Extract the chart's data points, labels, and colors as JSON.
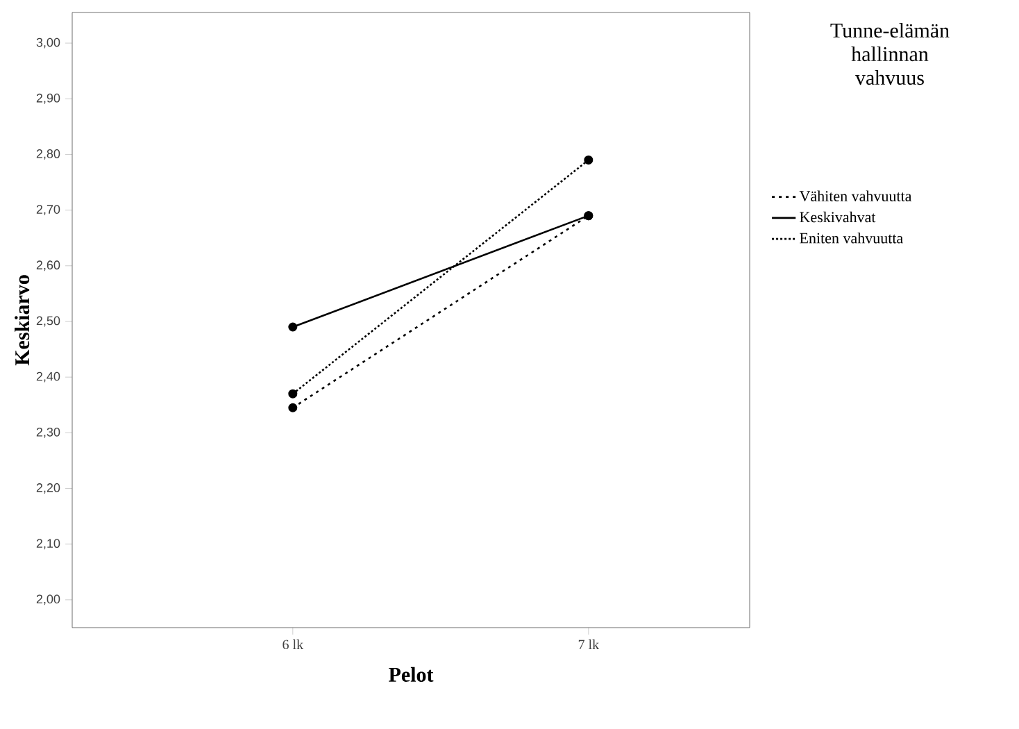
{
  "chart_data": {
    "type": "line",
    "xlabel": "Pelot",
    "ylabel": "Keskiarvo",
    "legend_title": "Tunne-elämän hallinnan vahvuus",
    "categories": [
      "6 lk",
      "7 lk"
    ],
    "series": [
      {
        "name": "Vähiten vahvuutta",
        "color": "#000000",
        "line_style": "dashed",
        "values": [
          2.345,
          2.69
        ]
      },
      {
        "name": "Keskivahvat",
        "color": "#000000",
        "line_style": "solid",
        "values": [
          2.49,
          2.69
        ]
      },
      {
        "name": "Eniten vahvuutta",
        "color": "#000000",
        "line_style": "dotted",
        "values": [
          2.37,
          2.79
        ]
      }
    ],
    "ylim": [
      1.95,
      3.055
    ],
    "yticks": [
      {
        "value": 2.0,
        "label": "2,00"
      },
      {
        "value": 2.1,
        "label": "2,10"
      },
      {
        "value": 2.2,
        "label": "2,20"
      },
      {
        "value": 2.3,
        "label": "2,30"
      },
      {
        "value": 2.4,
        "label": "2,40"
      },
      {
        "value": 2.5,
        "label": "2,50"
      },
      {
        "value": 2.6,
        "label": "2,60"
      },
      {
        "value": 2.7,
        "label": "2,70"
      },
      {
        "value": 2.8,
        "label": "2,80"
      },
      {
        "value": 2.9,
        "label": "2,90"
      },
      {
        "value": 3.0,
        "label": "3,00"
      }
    ],
    "marker": "circle",
    "legend": "right",
    "grid": false
  }
}
